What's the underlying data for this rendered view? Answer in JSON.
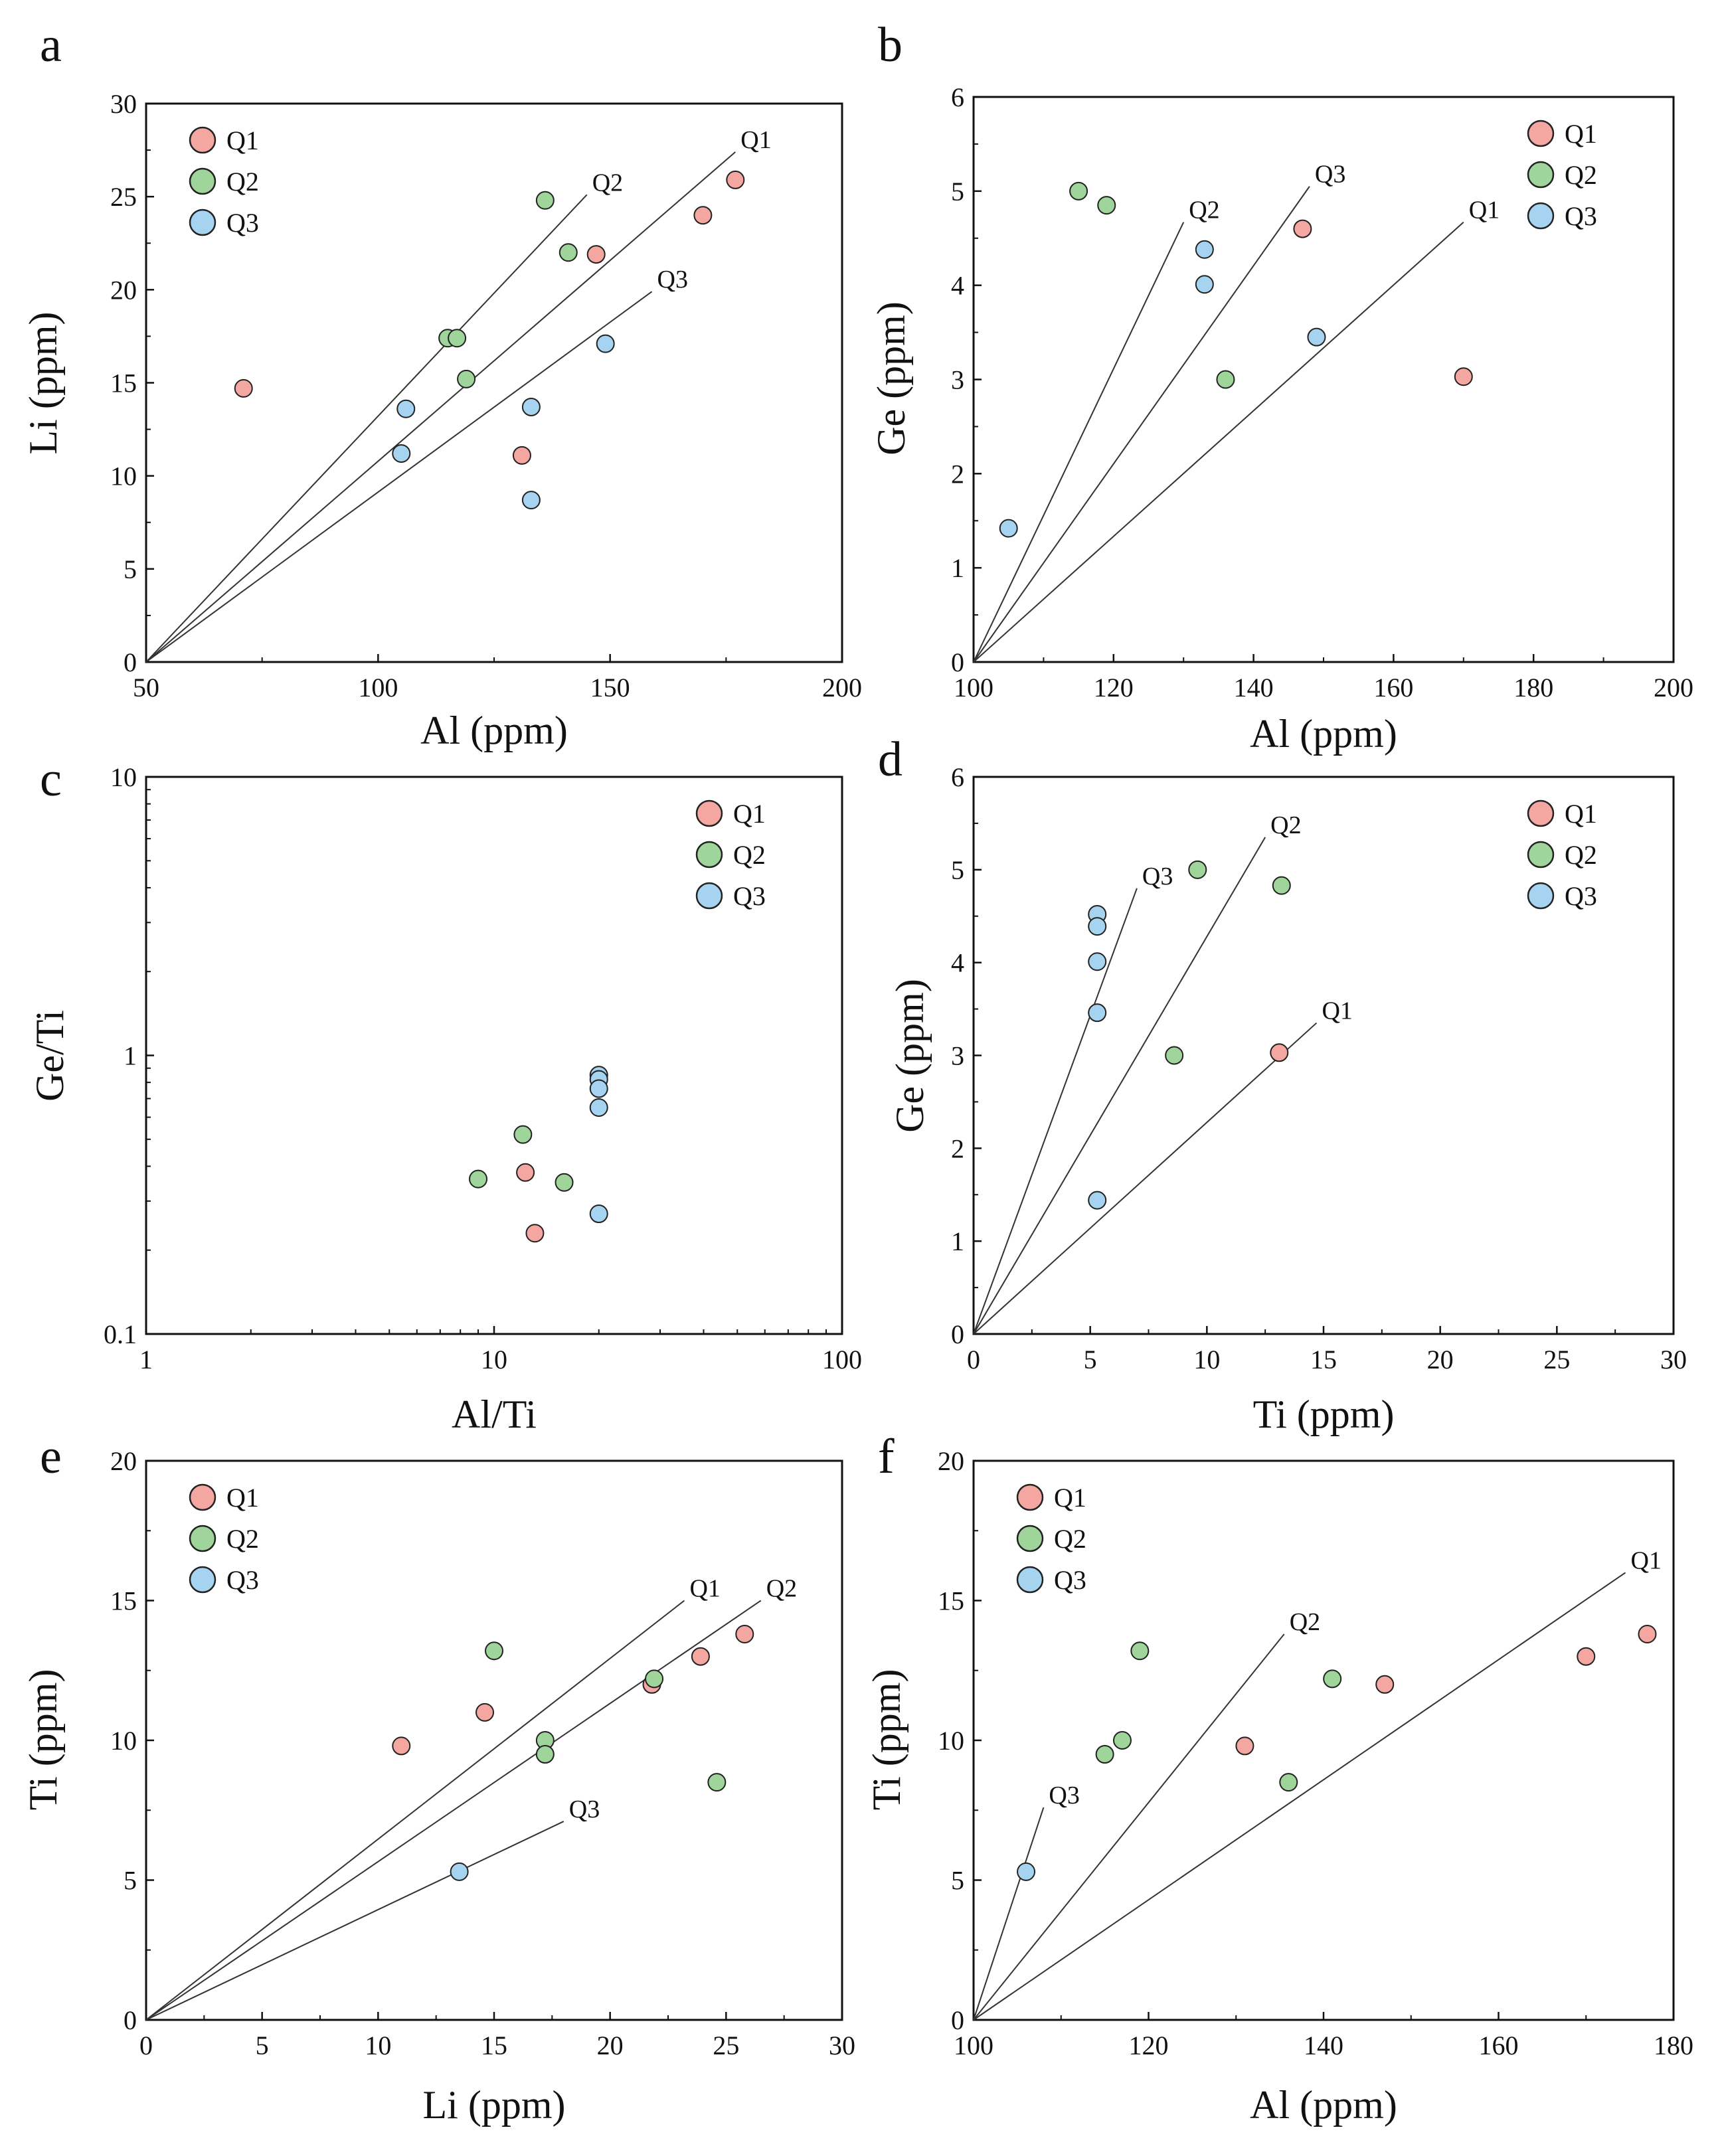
{
  "colors": {
    "Q1": "#f4a6a0",
    "Q2": "#9fd49a",
    "Q3": "#a6d3ef",
    "stroke": "#222222",
    "line": "#333333"
  },
  "legend": [
    "Q1",
    "Q2",
    "Q3"
  ],
  "chart_data": [
    {
      "id": "a",
      "type": "scatter",
      "letter": "a",
      "xlabel": "Al (ppm)",
      "ylabel": "Li (ppm)",
      "scale": "linear",
      "xlim": [
        50,
        200
      ],
      "ylim": [
        0,
        30
      ],
      "xticks": [
        50,
        100,
        150,
        200
      ],
      "xtick_labels": [
        "50",
        "100",
        "150",
        "200"
      ],
      "yticks": [
        0,
        5,
        10,
        15,
        20,
        25,
        30
      ],
      "ytick_labels": [
        "0",
        "5",
        "10",
        "15",
        "20",
        "25",
        "30"
      ],
      "legend_position": "top-left",
      "lines": [
        {
          "name": "Q1",
          "from": [
            50,
            0
          ],
          "to": [
            177,
            27.4
          ]
        },
        {
          "name": "Q2",
          "from": [
            50,
            0
          ],
          "to": [
            145,
            25.1
          ]
        },
        {
          "name": "Q3",
          "from": [
            50,
            0
          ],
          "to": [
            159,
            19.9
          ]
        }
      ],
      "series": [
        {
          "name": "Q1",
          "points": [
            [
              71,
              14.7
            ],
            [
              131,
              11.1
            ],
            [
              147,
              21.9
            ],
            [
              170,
              24.0
            ],
            [
              177,
              25.9
            ]
          ]
        },
        {
          "name": "Q2",
          "points": [
            [
              115,
              17.4
            ],
            [
              117,
              17.4
            ],
            [
              119,
              15.2
            ],
            [
              136,
              24.8
            ],
            [
              141,
              22.0
            ]
          ]
        },
        {
          "name": "Q3",
          "points": [
            [
              105,
              11.2
            ],
            [
              106,
              13.6
            ],
            [
              133,
              8.7
            ],
            [
              133,
              13.7
            ],
            [
              149,
              17.1
            ]
          ]
        }
      ]
    },
    {
      "id": "b",
      "type": "scatter",
      "letter": "b",
      "xlabel": "Al (ppm)",
      "ylabel": "Ge (ppm)",
      "scale": "linear",
      "xlim": [
        100,
        200
      ],
      "ylim": [
        0,
        6
      ],
      "xticks": [
        100,
        120,
        140,
        160,
        180,
        200
      ],
      "xtick_labels": [
        "100",
        "120",
        "140",
        "160",
        "180",
        "200"
      ],
      "yticks": [
        0,
        1,
        2,
        3,
        4,
        5,
        6
      ],
      "ytick_labels": [
        "0",
        "1",
        "2",
        "3",
        "4",
        "5",
        "6"
      ],
      "legend_position": "top-right",
      "lines": [
        {
          "name": "Q1",
          "from": [
            100,
            0
          ],
          "to": [
            170,
            4.67
          ]
        },
        {
          "name": "Q2",
          "from": [
            100,
            0
          ],
          "to": [
            130,
            4.67
          ]
        },
        {
          "name": "Q3",
          "from": [
            100,
            0
          ],
          "to": [
            148,
            5.05
          ]
        }
      ],
      "series": [
        {
          "name": "Q1",
          "points": [
            [
              147,
              4.6
            ],
            [
              170,
              3.03
            ]
          ]
        },
        {
          "name": "Q2",
          "points": [
            [
              115,
              5.0
            ],
            [
              119,
              4.85
            ],
            [
              136,
              3.0
            ]
          ]
        },
        {
          "name": "Q3",
          "points": [
            [
              105,
              1.42
            ],
            [
              133,
              4.38
            ],
            [
              133,
              4.01
            ],
            [
              149,
              3.45
            ]
          ]
        }
      ]
    },
    {
      "id": "c",
      "type": "scatter",
      "letter": "c",
      "xlabel": "Al/Ti",
      "ylabel": "Ge/Ti",
      "scale": "log",
      "xlim": [
        1,
        100
      ],
      "ylim": [
        0.1,
        10
      ],
      "xticks": [
        1,
        10,
        100
      ],
      "xtick_labels": [
        "1",
        "10",
        "100"
      ],
      "yticks": [
        0.1,
        1,
        10
      ],
      "ytick_labels": [
        "0.1",
        "1",
        "10"
      ],
      "legend_position": "top-right",
      "lines": [],
      "series": [
        {
          "name": "Q1",
          "points": [
            [
              12.3,
              0.38
            ],
            [
              13.1,
              0.23
            ]
          ]
        },
        {
          "name": "Q2",
          "points": [
            [
              9.0,
              0.36
            ],
            [
              12.1,
              0.52
            ],
            [
              15.9,
              0.35
            ]
          ]
        },
        {
          "name": "Q3",
          "points": [
            [
              20.0,
              0.85
            ],
            [
              20.0,
              0.82
            ],
            [
              20.0,
              0.76
            ],
            [
              20.0,
              0.65
            ],
            [
              20.0,
              0.27
            ]
          ]
        }
      ]
    },
    {
      "id": "d",
      "type": "scatter",
      "letter": "d",
      "xlabel": "Ti (ppm)",
      "ylabel": "Ge (ppm)",
      "scale": "linear",
      "xlim": [
        0,
        30
      ],
      "ylim": [
        0,
        6
      ],
      "xticks": [
        0,
        5,
        10,
        15,
        20,
        25,
        30
      ],
      "xtick_labels": [
        "0",
        "5",
        "10",
        "15",
        "20",
        "25",
        "30"
      ],
      "yticks": [
        0,
        1,
        2,
        3,
        4,
        5,
        6
      ],
      "ytick_labels": [
        "0",
        "1",
        "2",
        "3",
        "4",
        "5",
        "6"
      ],
      "legend_position": "top-right",
      "lines": [
        {
          "name": "Q1",
          "from": [
            0,
            0
          ],
          "to": [
            14.7,
            3.35
          ]
        },
        {
          "name": "Q2",
          "from": [
            0,
            0
          ],
          "to": [
            12.5,
            5.35
          ]
        },
        {
          "name": "Q3",
          "from": [
            0,
            0
          ],
          "to": [
            7.0,
            4.8
          ]
        }
      ],
      "series": [
        {
          "name": "Q1",
          "points": [
            [
              13.1,
              3.03
            ]
          ]
        },
        {
          "name": "Q2",
          "points": [
            [
              8.6,
              3.0
            ],
            [
              9.6,
              5.0
            ],
            [
              13.2,
              4.83
            ]
          ]
        },
        {
          "name": "Q3",
          "points": [
            [
              5.3,
              4.52
            ],
            [
              5.3,
              4.39
            ],
            [
              5.3,
              4.01
            ],
            [
              5.3,
              3.46
            ],
            [
              5.3,
              1.44
            ]
          ]
        }
      ]
    },
    {
      "id": "e",
      "type": "scatter",
      "letter": "e",
      "xlabel": "Li (ppm)",
      "ylabel": "Ti (ppm)",
      "scale": "linear",
      "xlim": [
        0,
        30
      ],
      "ylim": [
        0,
        20
      ],
      "xticks": [
        0,
        5,
        10,
        15,
        20,
        25,
        30
      ],
      "xtick_labels": [
        "0",
        "5",
        "10",
        "15",
        "20",
        "25",
        "30"
      ],
      "yticks": [
        0,
        5,
        10,
        15,
        20
      ],
      "ytick_labels": [
        "0",
        "5",
        "10",
        "15",
        "20"
      ],
      "legend_position": "top-left",
      "lines": [
        {
          "name": "Q1",
          "from": [
            0,
            0
          ],
          "to": [
            23.2,
            15.0
          ]
        },
        {
          "name": "Q2",
          "from": [
            0,
            0
          ],
          "to": [
            26.5,
            15.0
          ]
        },
        {
          "name": "Q3",
          "from": [
            0,
            0
          ],
          "to": [
            18.0,
            7.1
          ]
        }
      ],
      "series": [
        {
          "name": "Q1",
          "points": [
            [
              11.0,
              9.8
            ],
            [
              14.6,
              11.0
            ],
            [
              21.8,
              12.0
            ],
            [
              23.9,
              13.0
            ],
            [
              25.8,
              13.8
            ]
          ]
        },
        {
          "name": "Q2",
          "points": [
            [
              15.0,
              13.2
            ],
            [
              17.2,
              10.0
            ],
            [
              17.2,
              9.5
            ],
            [
              21.9,
              12.2
            ],
            [
              24.6,
              8.5
            ]
          ]
        },
        {
          "name": "Q3",
          "points": [
            [
              13.5,
              5.3
            ]
          ]
        }
      ]
    },
    {
      "id": "f",
      "type": "scatter",
      "letter": "f",
      "xlabel": "Al (ppm)",
      "ylabel": "Ti (ppm)",
      "scale": "linear",
      "xlim": [
        100,
        180
      ],
      "ylim": [
        0,
        20
      ],
      "xticks": [
        100,
        120,
        140,
        160,
        180
      ],
      "xtick_labels": [
        "100",
        "120",
        "140",
        "160",
        "180"
      ],
      "yticks": [
        0,
        5,
        10,
        15,
        20
      ],
      "ytick_labels": [
        "0",
        "5",
        "10",
        "15",
        "20"
      ],
      "legend_position": "top-left",
      "lines": [
        {
          "name": "Q1",
          "from": [
            100,
            0
          ],
          "to": [
            174.5,
            16.0
          ]
        },
        {
          "name": "Q2",
          "from": [
            100,
            0
          ],
          "to": [
            135.5,
            13.8
          ]
        },
        {
          "name": "Q3",
          "from": [
            100,
            0
          ],
          "to": [
            108.0,
            7.6
          ]
        }
      ],
      "series": [
        {
          "name": "Q1",
          "points": [
            [
              131,
              9.8
            ],
            [
              147,
              12.0
            ],
            [
              170,
              13.0
            ],
            [
              177,
              13.8
            ]
          ]
        },
        {
          "name": "Q2",
          "points": [
            [
              115,
              9.5
            ],
            [
              117,
              10.0
            ],
            [
              119,
              13.2
            ],
            [
              136,
              8.5
            ],
            [
              141,
              12.2
            ]
          ]
        },
        {
          "name": "Q3",
          "points": [
            [
              106,
              5.3
            ]
          ]
        }
      ]
    }
  ]
}
